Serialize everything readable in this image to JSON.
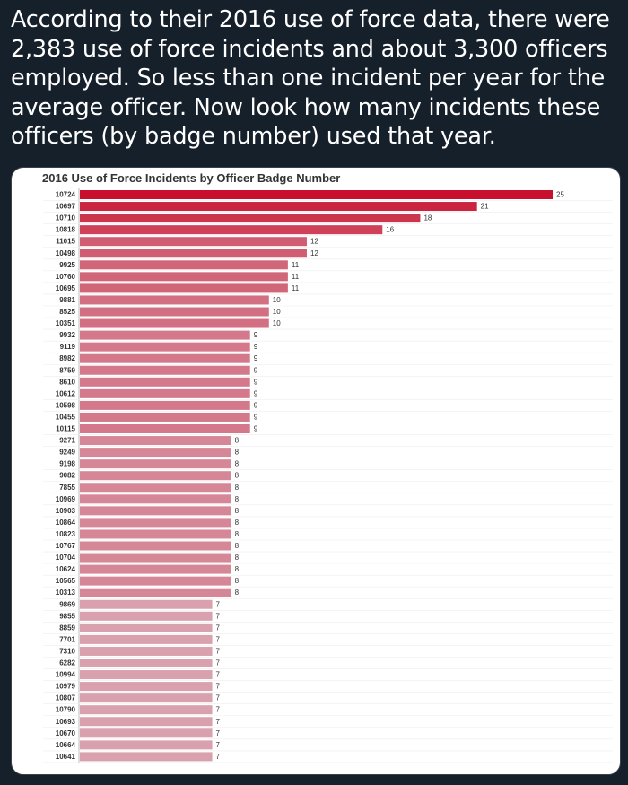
{
  "tweet": {
    "text": "According to their 2016 use of force data, there were 2,383 use of force incidents and about 3,300 officers employed. So less than one incident per year for the average officer. Now look how many incidents these officers (by badge number) used that year."
  },
  "chart_data": {
    "type": "bar",
    "orientation": "horizontal",
    "title": "2016 Use of Force Incidents by Officer Badge Number",
    "categories": [
      "10724",
      "10697",
      "10710",
      "10818",
      "11015",
      "10498",
      "9925",
      "10760",
      "10695",
      "9881",
      "8525",
      "10351",
      "9932",
      "9119",
      "8982",
      "8759",
      "8610",
      "10612",
      "10598",
      "10455",
      "10115",
      "9271",
      "9249",
      "9198",
      "9082",
      "7855",
      "10969",
      "10903",
      "10864",
      "10823",
      "10767",
      "10704",
      "10624",
      "10565",
      "10313",
      "9869",
      "9855",
      "8859",
      "7701",
      "7310",
      "6282",
      "10994",
      "10979",
      "10807",
      "10790",
      "10693",
      "10670",
      "10664",
      "10641"
    ],
    "values": [
      25,
      21,
      18,
      16,
      12,
      12,
      11,
      11,
      11,
      10,
      10,
      10,
      9,
      9,
      9,
      9,
      9,
      9,
      9,
      9,
      9,
      8,
      8,
      8,
      8,
      8,
      8,
      8,
      8,
      8,
      8,
      8,
      8,
      8,
      8,
      7,
      7,
      7,
      7,
      7,
      7,
      7,
      7,
      7,
      7,
      7,
      7,
      7,
      7
    ],
    "colors": {
      "high": "#c8102e",
      "low": "#d9a0ad"
    }
  }
}
